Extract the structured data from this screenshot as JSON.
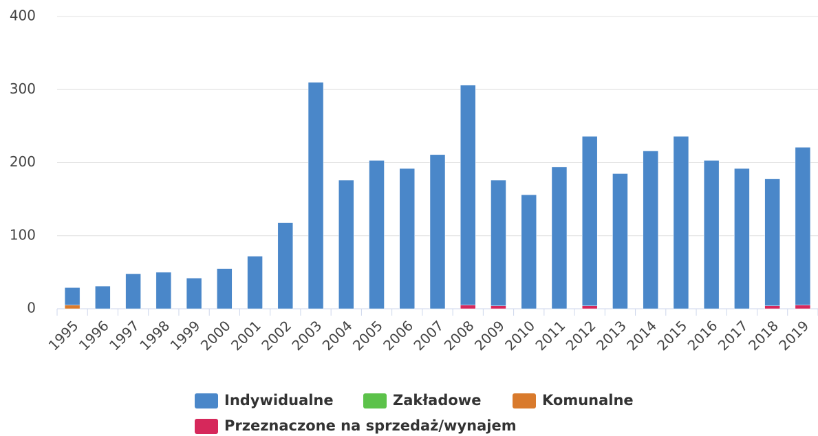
{
  "chart_data": {
    "type": "bar",
    "stacked": true,
    "categories": [
      "1995",
      "1996",
      "1997",
      "1998",
      "1999",
      "2000",
      "2001",
      "2002",
      "2003",
      "2004",
      "2005",
      "2006",
      "2007",
      "2008",
      "2009",
      "2010",
      "2011",
      "2012",
      "2013",
      "2014",
      "2015",
      "2016",
      "2017",
      "2018",
      "2019"
    ],
    "series": [
      {
        "name": "Indywidualne",
        "color": "#4a87c9",
        "values": [
          24,
          31,
          48,
          50,
          42,
          55,
          72,
          118,
          310,
          176,
          203,
          192,
          211,
          301,
          172,
          156,
          194,
          232,
          185,
          216,
          236,
          203,
          192,
          174,
          216
        ]
      },
      {
        "name": "Zakładowe",
        "color": "#5cc24a",
        "values": [
          0,
          0,
          0,
          0,
          0,
          0,
          0,
          0,
          0,
          0,
          0,
          0,
          0,
          0,
          0,
          0,
          0,
          0,
          0,
          0,
          0,
          0,
          0,
          0,
          0
        ]
      },
      {
        "name": "Komunalne",
        "color": "#d97a2c",
        "values": [
          5,
          0,
          0,
          0,
          0,
          0,
          0,
          0,
          0,
          0,
          0,
          0,
          0,
          0,
          0,
          0,
          0,
          0,
          0,
          0,
          0,
          0,
          0,
          0,
          0
        ]
      },
      {
        "name": "Przeznaczone na sprzedaż/wynajem",
        "color": "#d6285b",
        "values": [
          0,
          0,
          0,
          0,
          0,
          0,
          0,
          0,
          0,
          0,
          0,
          0,
          0,
          5,
          4,
          0,
          0,
          4,
          0,
          0,
          0,
          0,
          0,
          4,
          5
        ]
      }
    ],
    "ylim": [
      0,
      400
    ],
    "yticks": [
      0,
      100,
      200,
      300,
      400
    ],
    "grid": true
  }
}
